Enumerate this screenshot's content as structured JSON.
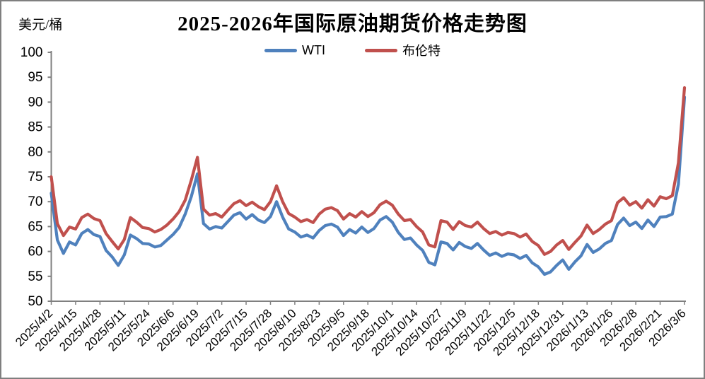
{
  "window": {
    "background": "#ffffff",
    "border_color": "#7f7f7f",
    "axis_color": "#808080"
  },
  "chart": {
    "title": "2025-2026年国际原油期货价格走势图",
    "unit_label": "美元/桶",
    "legend": [
      {
        "name": "WTI",
        "color": "#4F81BD"
      },
      {
        "name": "布伦特",
        "color": "#C0504D"
      }
    ]
  },
  "chart_data": {
    "type": "line",
    "title": "2025-2026年国际原油期货价格走势图",
    "xlabel": "",
    "ylabel": "美元/桶",
    "ylim": [
      50,
      100
    ],
    "yticks": [
      100,
      95,
      90,
      85,
      80,
      75,
      70,
      65,
      60,
      55,
      50
    ],
    "grid": false,
    "legend_position": "top-center",
    "x_tick_labels": [
      "2025/4/2",
      "2025/4/15",
      "2025/4/28",
      "2025/5/11",
      "2025/5/24",
      "2025/6/6",
      "2025/6/19",
      "2025/7/2",
      "2025/7/15",
      "2025/7/28",
      "2025/8/10",
      "2025/8/23",
      "2025/9/5",
      "2025/9/18",
      "2025/10/1",
      "2025/10/14",
      "2025/10/27",
      "2025/11/9",
      "2025/11/22",
      "2025/12/5",
      "2025/12/18",
      "2025/12/31",
      "2026/1/13",
      "2026/1/26",
      "2026/2/8",
      "2026/2/21",
      "2026/3/6"
    ],
    "series": [
      {
        "name": "WTI",
        "color": "#4F81BD",
        "values": [
          71.7,
          62.3,
          59.6,
          61.9,
          61.3,
          63.6,
          64.4,
          63.4,
          63.0,
          60.2,
          58.9,
          57.2,
          59.3,
          63.3,
          62.6,
          61.6,
          61.5,
          60.9,
          61.2,
          62.3,
          63.4,
          64.8,
          67.5,
          71.0,
          75.6,
          65.6,
          64.5,
          65.0,
          64.7,
          66.0,
          67.3,
          67.8,
          66.5,
          67.4,
          66.3,
          65.8,
          67.0,
          70.0,
          66.9,
          64.5,
          63.9,
          62.9,
          63.3,
          62.7,
          64.2,
          65.2,
          65.5,
          64.9,
          63.2,
          64.4,
          63.7,
          64.9,
          63.8,
          64.6,
          66.3,
          67.0,
          65.9,
          63.8,
          62.4,
          62.7,
          61.3,
          60.2,
          57.8,
          57.3,
          61.9,
          61.6,
          60.3,
          61.8,
          61.0,
          60.6,
          61.6,
          60.3,
          59.2,
          59.7,
          59.0,
          59.5,
          59.3,
          58.6,
          59.2,
          57.7,
          56.9,
          55.4,
          55.9,
          57.2,
          58.3,
          56.4,
          57.9,
          59.1,
          61.4,
          59.8,
          60.5,
          61.6,
          62.2,
          65.4,
          66.7,
          65.2,
          65.9,
          64.6,
          66.3,
          65.0,
          66.9,
          67.0,
          67.5,
          73.5,
          91.0
        ]
      },
      {
        "name": "布伦特",
        "color": "#C0504D",
        "values": [
          75.0,
          65.6,
          63.2,
          64.9,
          64.5,
          66.8,
          67.5,
          66.6,
          66.2,
          63.6,
          62.0,
          60.5,
          62.4,
          66.8,
          65.9,
          64.8,
          64.6,
          63.9,
          64.4,
          65.3,
          66.5,
          68.0,
          70.3,
          74.3,
          78.9,
          68.5,
          67.3,
          67.6,
          66.9,
          68.3,
          69.6,
          70.2,
          69.2,
          69.9,
          69.0,
          68.4,
          70.0,
          73.2,
          70.0,
          67.6,
          66.9,
          66.0,
          66.4,
          65.8,
          67.5,
          68.5,
          68.8,
          68.2,
          66.5,
          67.6,
          66.9,
          68.0,
          67.0,
          67.8,
          69.4,
          70.1,
          69.3,
          67.5,
          66.2,
          66.4,
          65.0,
          63.9,
          61.3,
          60.9,
          66.2,
          65.9,
          64.4,
          66.0,
          65.2,
          64.9,
          65.9,
          64.6,
          63.6,
          64.0,
          63.3,
          63.8,
          63.6,
          62.9,
          63.5,
          62.0,
          61.2,
          59.4,
          60.0,
          61.3,
          62.2,
          60.4,
          61.8,
          63.1,
          65.3,
          63.6,
          64.4,
          65.5,
          66.2,
          69.8,
          70.8,
          69.3,
          70.0,
          68.7,
          70.4,
          69.1,
          71.0,
          70.6,
          71.2,
          77.8,
          92.9
        ]
      }
    ]
  }
}
